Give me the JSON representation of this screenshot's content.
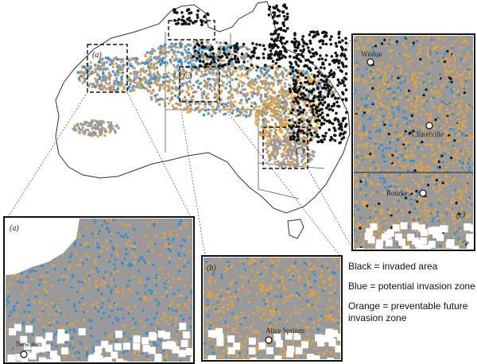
{
  "colors": {
    "invaded": "#111111",
    "potential": "#2f8fd6",
    "preventable": "#e8a23a",
    "unsuitable": "#9a9a9a",
    "land_fill": "#ffffff",
    "coast": "#333333"
  },
  "insets": {
    "a": {
      "tag": "(a)",
      "places": [
        "Newman"
      ]
    },
    "b": {
      "tag": "(b)",
      "places": [
        "Alice Springs"
      ]
    },
    "c": {
      "tag": "(c)",
      "places": [
        "Winton",
        "Charelville",
        "Bourke"
      ]
    }
  },
  "legend": {
    "invaded": "Black = invaded area",
    "potential": "Blue = potential invasion zone",
    "preventable": "Orange = preventable future invasion zone"
  }
}
